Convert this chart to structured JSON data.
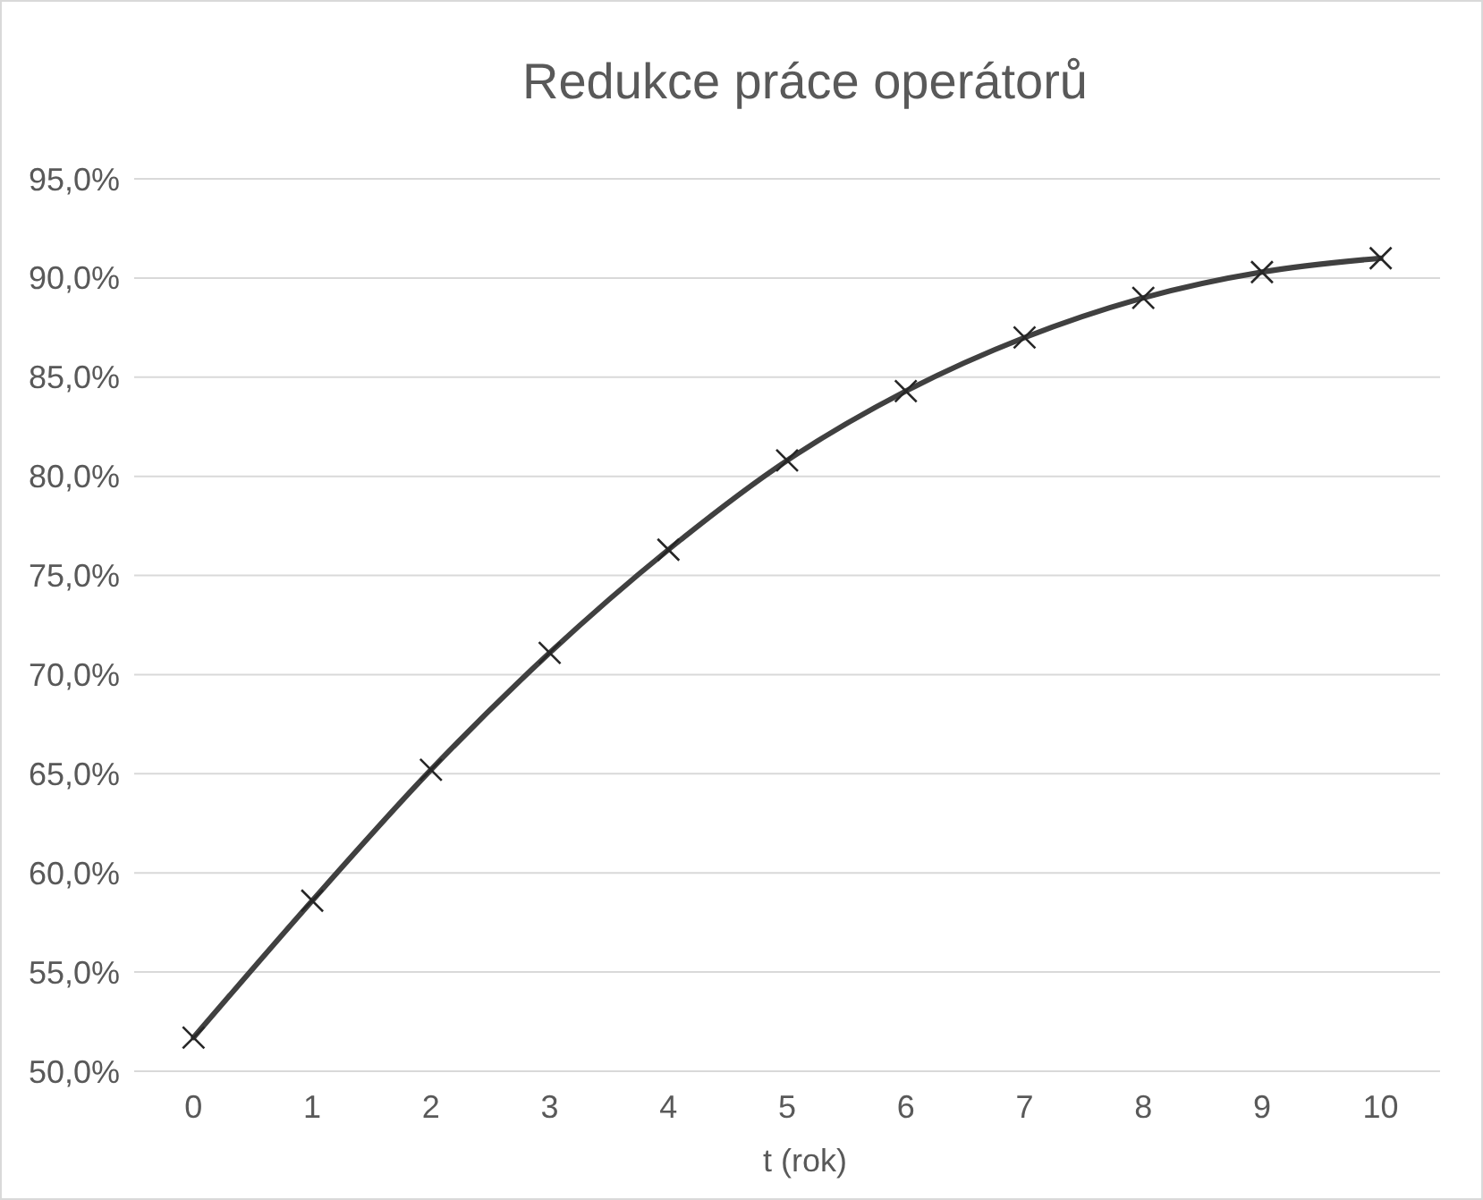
{
  "chart_data": {
    "type": "line",
    "title": "Redukce práce operátorů",
    "xlabel": "t (rok)",
    "categories": [
      "0",
      "1",
      "2",
      "3",
      "4",
      "5",
      "6",
      "7",
      "8",
      "9",
      "10"
    ],
    "series": [
      {
        "color": "#404040",
        "values": [
          51.7,
          58.6,
          65.2,
          71.1,
          76.3,
          80.8,
          84.3,
          87.0,
          89.0,
          90.3,
          91.0
        ]
      }
    ],
    "ylim": [
      50,
      95
    ],
    "yticks": [
      {
        "value": 50,
        "label": "50,0%"
      },
      {
        "value": 55,
        "label": "55,0%"
      },
      {
        "value": 60,
        "label": "60,0%"
      },
      {
        "value": 65,
        "label": "65,0%"
      },
      {
        "value": 70,
        "label": "70,0%"
      },
      {
        "value": 75,
        "label": "75,0%"
      },
      {
        "value": 80,
        "label": "80,0%"
      },
      {
        "value": 85,
        "label": "85,0%"
      },
      {
        "value": 90,
        "label": "90,0%"
      },
      {
        "value": 95,
        "label": "95,0%"
      }
    ],
    "grid": "y",
    "marker": "cross",
    "line_style": "solid"
  }
}
